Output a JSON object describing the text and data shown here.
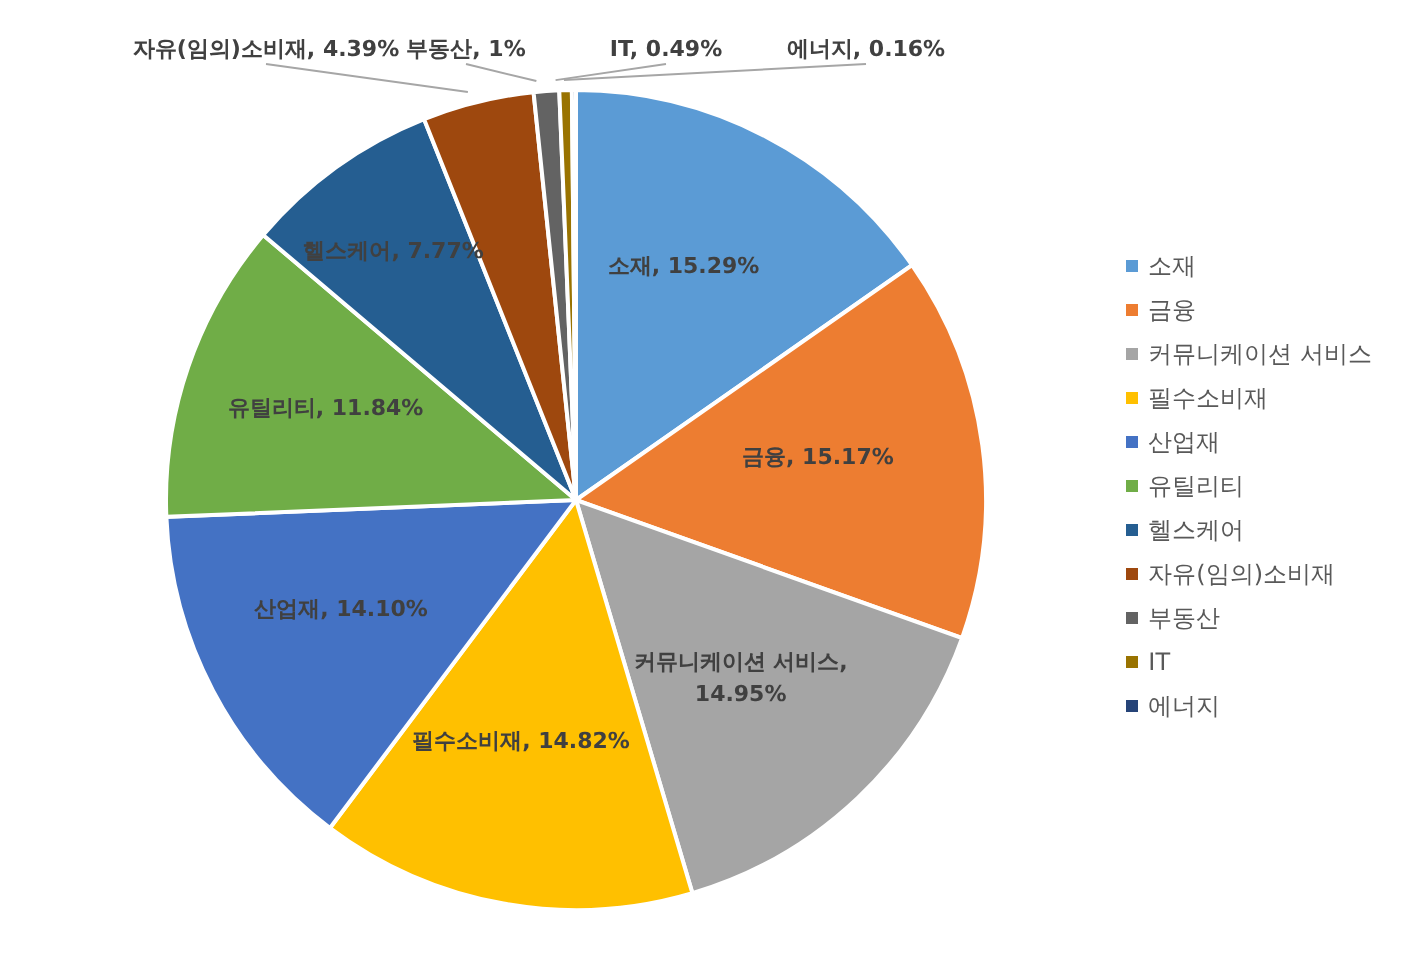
{
  "chart_data": {
    "type": "pie",
    "categories": [
      "소재",
      "금융",
      "커뮤니케이션 서비스",
      "필수소비재",
      "산업재",
      "유틸리티",
      "헬스케어",
      "자유(임의)소비재",
      "부동산",
      "IT",
      "에너지"
    ],
    "values": [
      15.29,
      15.17,
      14.95,
      14.82,
      14.1,
      11.84,
      7.77,
      4.39,
      1,
      0.49,
      0.16
    ],
    "colors": [
      "#5b9bd5",
      "#ed7d31",
      "#a5a5a5",
      "#ffc000",
      "#4472c4",
      "#70ad47",
      "#255e91",
      "#9e480e",
      "#636363",
      "#997300",
      "#264478"
    ],
    "value_labels": [
      ", 15.29%",
      ", 15.17%",
      ", 14.95%",
      ", 14.82%",
      ", 14.10%",
      ", 11.84%",
      ", 7.77%",
      ", 4.39%",
      ", 1%",
      ", 0.49%",
      ", 0.16%"
    ],
    "legend": "right"
  }
}
